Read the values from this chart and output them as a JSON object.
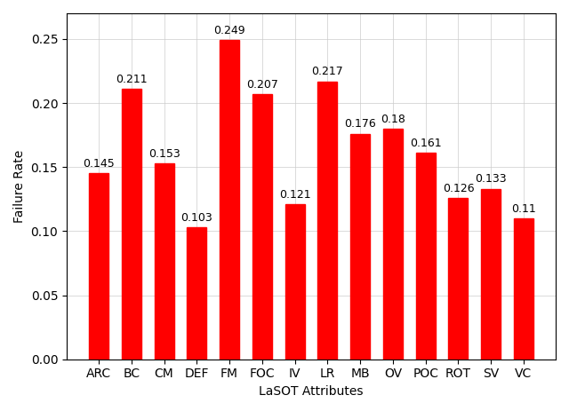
{
  "categories": [
    "ARC",
    "BC",
    "CM",
    "DEF",
    "FM",
    "FOC",
    "IV",
    "LR",
    "MB",
    "OV",
    "POC",
    "ROT",
    "SV",
    "VC"
  ],
  "values": [
    0.145,
    0.211,
    0.153,
    0.103,
    0.249,
    0.207,
    0.121,
    0.217,
    0.176,
    0.18,
    0.161,
    0.126,
    0.133,
    0.11
  ],
  "bar_color": "#ff0000",
  "xlabel": "LaSOT Attributes",
  "ylabel": "Failure Rate",
  "ylim": [
    0.0,
    0.27
  ],
  "yticks": [
    0.0,
    0.05,
    0.1,
    0.15,
    0.2,
    0.25
  ],
  "grid": true,
  "background_color": "#ffffff",
  "label_fontsize": 10,
  "value_fontsize": 9,
  "bar_width": 0.6
}
